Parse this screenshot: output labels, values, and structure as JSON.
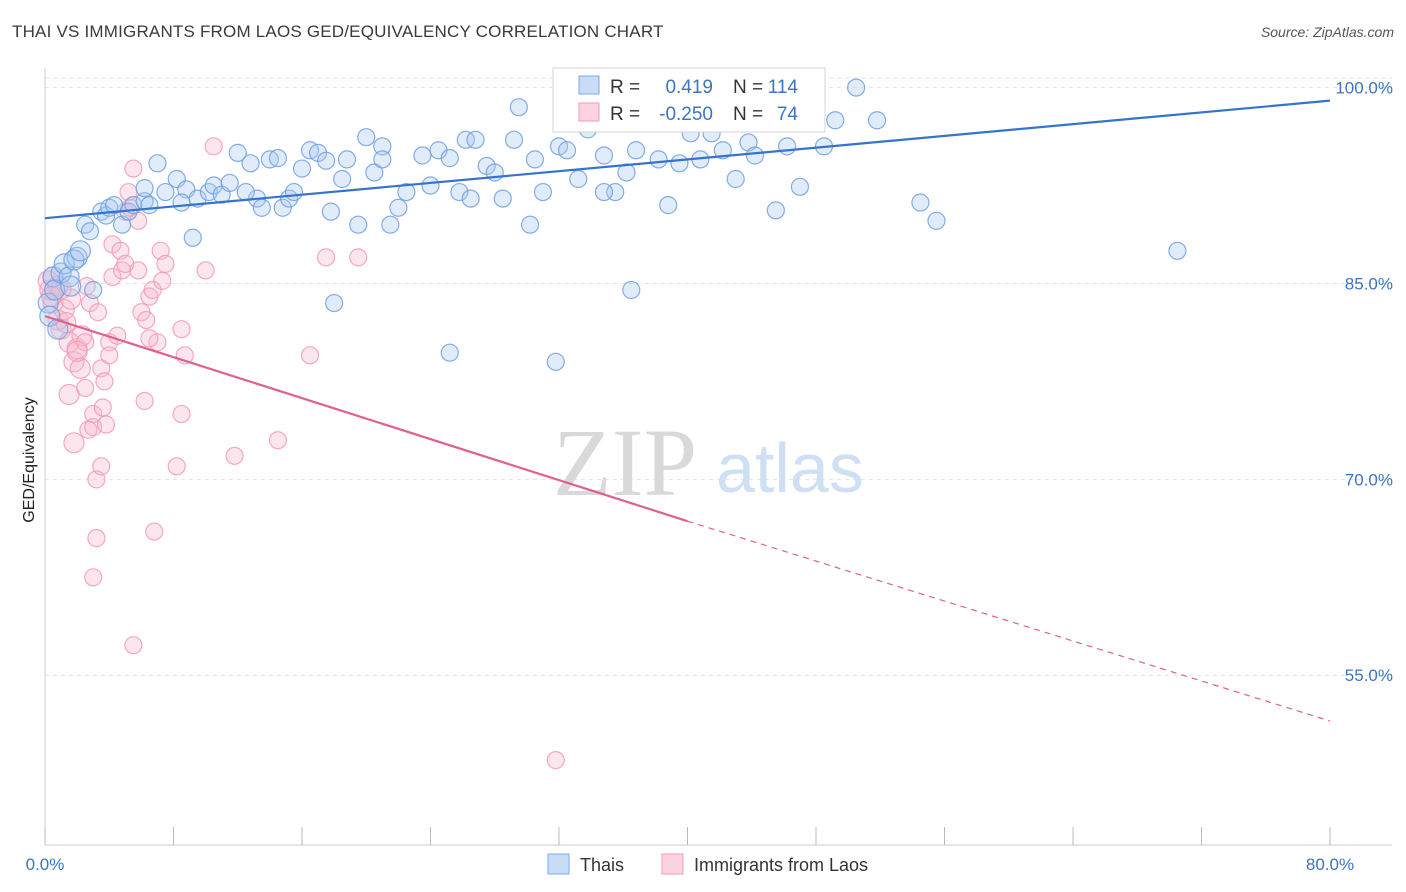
{
  "title": "THAI VS IMMIGRANTS FROM LAOS GED/EQUIVALENCY CORRELATION CHART",
  "source": "Source: ZipAtlas.com",
  "watermark": {
    "zip": "ZIP",
    "atlas": "atlas"
  },
  "legend": {
    "r_label": "R =",
    "n_label": "N =",
    "rows": [
      {
        "r": "0.419",
        "n": "114"
      },
      {
        "r": "-0.250",
        "n": "74"
      }
    ]
  },
  "chart_data": {
    "type": "scatter",
    "title": "THAI VS IMMIGRANTS FROM LAOS GED/EQUIVALENCY CORRELATION CHART",
    "xlabel": "",
    "ylabel": "GED/Equivalency",
    "xlim": [
      0,
      80
    ],
    "ylim": [
      42,
      101.5
    ],
    "x_ticks": [
      0,
      8,
      16,
      24,
      32,
      40,
      48,
      56,
      64,
      72,
      80
    ],
    "x_tick_labels": {
      "0": "0.0%",
      "80": "80.0%"
    },
    "y_ticks": [
      55,
      70,
      85,
      100
    ],
    "y_tick_labels": [
      "55.0%",
      "70.0%",
      "85.0%",
      "100.0%"
    ],
    "grid": true,
    "legend_position": "top-center",
    "colors": {
      "thais": "#7aaae8",
      "thais_line": "#3673cc",
      "laos": "#f29ab8",
      "laos_line": "#e0608f",
      "tick_label": "#3b74c4"
    },
    "series": [
      {
        "name": "Thais",
        "r": 0.419,
        "n": 114,
        "trend": {
          "x": [
            0,
            80
          ],
          "y": [
            90.0,
            99.0
          ]
        },
        "points": [
          [
            0.2,
            83.5
          ],
          [
            0.3,
            82.5
          ],
          [
            0.5,
            85.5
          ],
          [
            0.6,
            84.5
          ],
          [
            0.8,
            81.5
          ],
          [
            1.0,
            85.8
          ],
          [
            1.2,
            86.5
          ],
          [
            1.5,
            85.5
          ],
          [
            1.6,
            84.8
          ],
          [
            2.0,
            87.0
          ],
          [
            1.8,
            86.8
          ],
          [
            2.2,
            87.5
          ],
          [
            2.5,
            89.5
          ],
          [
            2.8,
            89.0
          ],
          [
            3.0,
            84.5
          ],
          [
            3.5,
            90.5
          ],
          [
            3.8,
            90.2
          ],
          [
            4.0,
            90.8
          ],
          [
            4.3,
            91.0
          ],
          [
            4.8,
            89.5
          ],
          [
            5.2,
            90.5
          ],
          [
            5.5,
            91.0
          ],
          [
            6.2,
            91.3
          ],
          [
            6.5,
            91.0
          ],
          [
            6.2,
            92.3
          ],
          [
            7.0,
            94.2
          ],
          [
            7.5,
            92.0
          ],
          [
            8.2,
            93.0
          ],
          [
            8.8,
            92.2
          ],
          [
            8.5,
            91.2
          ],
          [
            9.5,
            91.5
          ],
          [
            9.2,
            88.5
          ],
          [
            10.2,
            92.0
          ],
          [
            10.5,
            92.5
          ],
          [
            11.0,
            91.8
          ],
          [
            11.5,
            92.7
          ],
          [
            12.0,
            95.0
          ],
          [
            12.8,
            94.2
          ],
          [
            13.2,
            91.5
          ],
          [
            13.5,
            90.8
          ],
          [
            14.0,
            94.5
          ],
          [
            14.5,
            94.6
          ],
          [
            14.8,
            90.8
          ],
          [
            15.2,
            91.5
          ],
          [
            15.5,
            92.0
          ],
          [
            16.0,
            93.8
          ],
          [
            16.5,
            95.2
          ],
          [
            17.0,
            95.0
          ],
          [
            17.5,
            94.4
          ],
          [
            17.8,
            90.5
          ],
          [
            18.5,
            93.0
          ],
          [
            18.8,
            94.5
          ],
          [
            18.0,
            83.5
          ],
          [
            19.5,
            89.5
          ],
          [
            20.0,
            96.2
          ],
          [
            20.5,
            93.5
          ],
          [
            21.0,
            95.5
          ],
          [
            21.5,
            89.5
          ],
          [
            22.0,
            90.8
          ],
          [
            22.5,
            92.0
          ],
          [
            23.5,
            94.8
          ],
          [
            24.0,
            92.5
          ],
          [
            24.5,
            95.2
          ],
          [
            25.2,
            94.6
          ],
          [
            25.8,
            92.0
          ],
          [
            26.2,
            96.0
          ],
          [
            26.8,
            96.0
          ],
          [
            27.5,
            94.0
          ],
          [
            28.0,
            93.5
          ],
          [
            28.5,
            91.5
          ],
          [
            29.2,
            96.0
          ],
          [
            29.5,
            98.5
          ],
          [
            30.5,
            94.5
          ],
          [
            31.0,
            92.0
          ],
          [
            30.2,
            89.5
          ],
          [
            32.0,
            95.5
          ],
          [
            32.5,
            95.2
          ],
          [
            33.2,
            93.0
          ],
          [
            33.8,
            96.8
          ],
          [
            34.8,
            94.8
          ],
          [
            35.5,
            92.0
          ],
          [
            36.2,
            93.5
          ],
          [
            36.8,
            95.2
          ],
          [
            37.5,
            98.2
          ],
          [
            38.2,
            94.5
          ],
          [
            38.8,
            91.0
          ],
          [
            39.5,
            94.2
          ],
          [
            40.2,
            96.5
          ],
          [
            40.8,
            94.5
          ],
          [
            41.5,
            96.5
          ],
          [
            42.2,
            95.2
          ],
          [
            43.0,
            93.0
          ],
          [
            43.8,
            95.8
          ],
          [
            44.2,
            94.8
          ],
          [
            45.2,
            98.0
          ],
          [
            46.2,
            95.5
          ],
          [
            47.0,
            92.4
          ],
          [
            47.5,
            97.5
          ],
          [
            48.5,
            95.5
          ],
          [
            49.2,
            97.5
          ],
          [
            50.5,
            100.0
          ],
          [
            51.8,
            97.5
          ],
          [
            31.8,
            79.0
          ],
          [
            34.2,
            97.5
          ],
          [
            36.5,
            84.5
          ],
          [
            25.2,
            79.7
          ],
          [
            45.5,
            90.6
          ],
          [
            54.5,
            91.2
          ],
          [
            55.5,
            89.8
          ],
          [
            70.5,
            87.5
          ],
          [
            34.8,
            92.0
          ],
          [
            26.5,
            91.5
          ],
          [
            12.5,
            92.0
          ],
          [
            21.0,
            94.5
          ]
        ]
      },
      {
        "name": "Immigrants from Laos",
        "r": -0.25,
        "n": 74,
        "trend": {
          "x": [
            0,
            40
          ],
          "y": [
            82.5,
            66.8
          ]
        },
        "trend_extension": {
          "x": [
            40,
            80
          ],
          "y": [
            66.8,
            51.5
          ]
        },
        "points": [
          [
            0.2,
            85.2
          ],
          [
            0.3,
            84.5
          ],
          [
            0.5,
            83.5
          ],
          [
            0.5,
            85.5
          ],
          [
            0.8,
            84.8
          ],
          [
            0.8,
            82.2
          ],
          [
            1.0,
            81.5
          ],
          [
            1.2,
            83.0
          ],
          [
            1.3,
            82.0
          ],
          [
            1.5,
            80.5
          ],
          [
            1.5,
            76.5
          ],
          [
            1.8,
            79.0
          ],
          [
            1.8,
            72.8
          ],
          [
            2.0,
            80.0
          ],
          [
            2.2,
            78.5
          ],
          [
            2.3,
            81.0
          ],
          [
            2.5,
            77.0
          ],
          [
            2.5,
            80.5
          ],
          [
            2.7,
            73.8
          ],
          [
            2.8,
            83.5
          ],
          [
            3.0,
            74.0
          ],
          [
            3.0,
            75.0
          ],
          [
            3.2,
            70.0
          ],
          [
            3.2,
            65.5
          ],
          [
            3.0,
            62.5
          ],
          [
            3.5,
            78.5
          ],
          [
            3.6,
            75.5
          ],
          [
            3.7,
            77.5
          ],
          [
            3.8,
            74.2
          ],
          [
            3.5,
            71.0
          ],
          [
            4.0,
            80.5
          ],
          [
            4.0,
            79.5
          ],
          [
            4.2,
            85.5
          ],
          [
            4.2,
            88.0
          ],
          [
            4.5,
            81.0
          ],
          [
            4.7,
            87.5
          ],
          [
            4.8,
            86.0
          ],
          [
            5.0,
            90.5
          ],
          [
            5.2,
            92.0
          ],
          [
            5.5,
            93.8
          ],
          [
            5.3,
            90.8
          ],
          [
            5.8,
            86.0
          ],
          [
            5.5,
            57.3
          ],
          [
            6.0,
            82.8
          ],
          [
            6.2,
            76.0
          ],
          [
            6.3,
            82.2
          ],
          [
            6.5,
            84.0
          ],
          [
            6.7,
            84.5
          ],
          [
            6.8,
            66.0
          ],
          [
            7.0,
            80.5
          ],
          [
            7.2,
            87.5
          ],
          [
            7.3,
            85.2
          ],
          [
            7.5,
            86.5
          ],
          [
            8.2,
            71.0
          ],
          [
            8.5,
            81.5
          ],
          [
            8.5,
            75.0
          ],
          [
            8.7,
            79.5
          ],
          [
            10.0,
            86.0
          ],
          [
            10.5,
            95.5
          ],
          [
            11.8,
            71.8
          ],
          [
            14.5,
            73.0
          ],
          [
            16.5,
            79.5
          ],
          [
            17.5,
            87.0
          ],
          [
            19.5,
            87.0
          ],
          [
            31.8,
            48.5
          ],
          [
            3.3,
            82.8
          ],
          [
            2.0,
            79.8
          ],
          [
            6.5,
            80.8
          ],
          [
            5.0,
            86.5
          ],
          [
            1.6,
            83.8
          ],
          [
            0.4,
            84.0
          ],
          [
            1.0,
            84.6
          ],
          [
            2.6,
            84.8
          ],
          [
            5.8,
            89.8
          ]
        ]
      }
    ]
  }
}
